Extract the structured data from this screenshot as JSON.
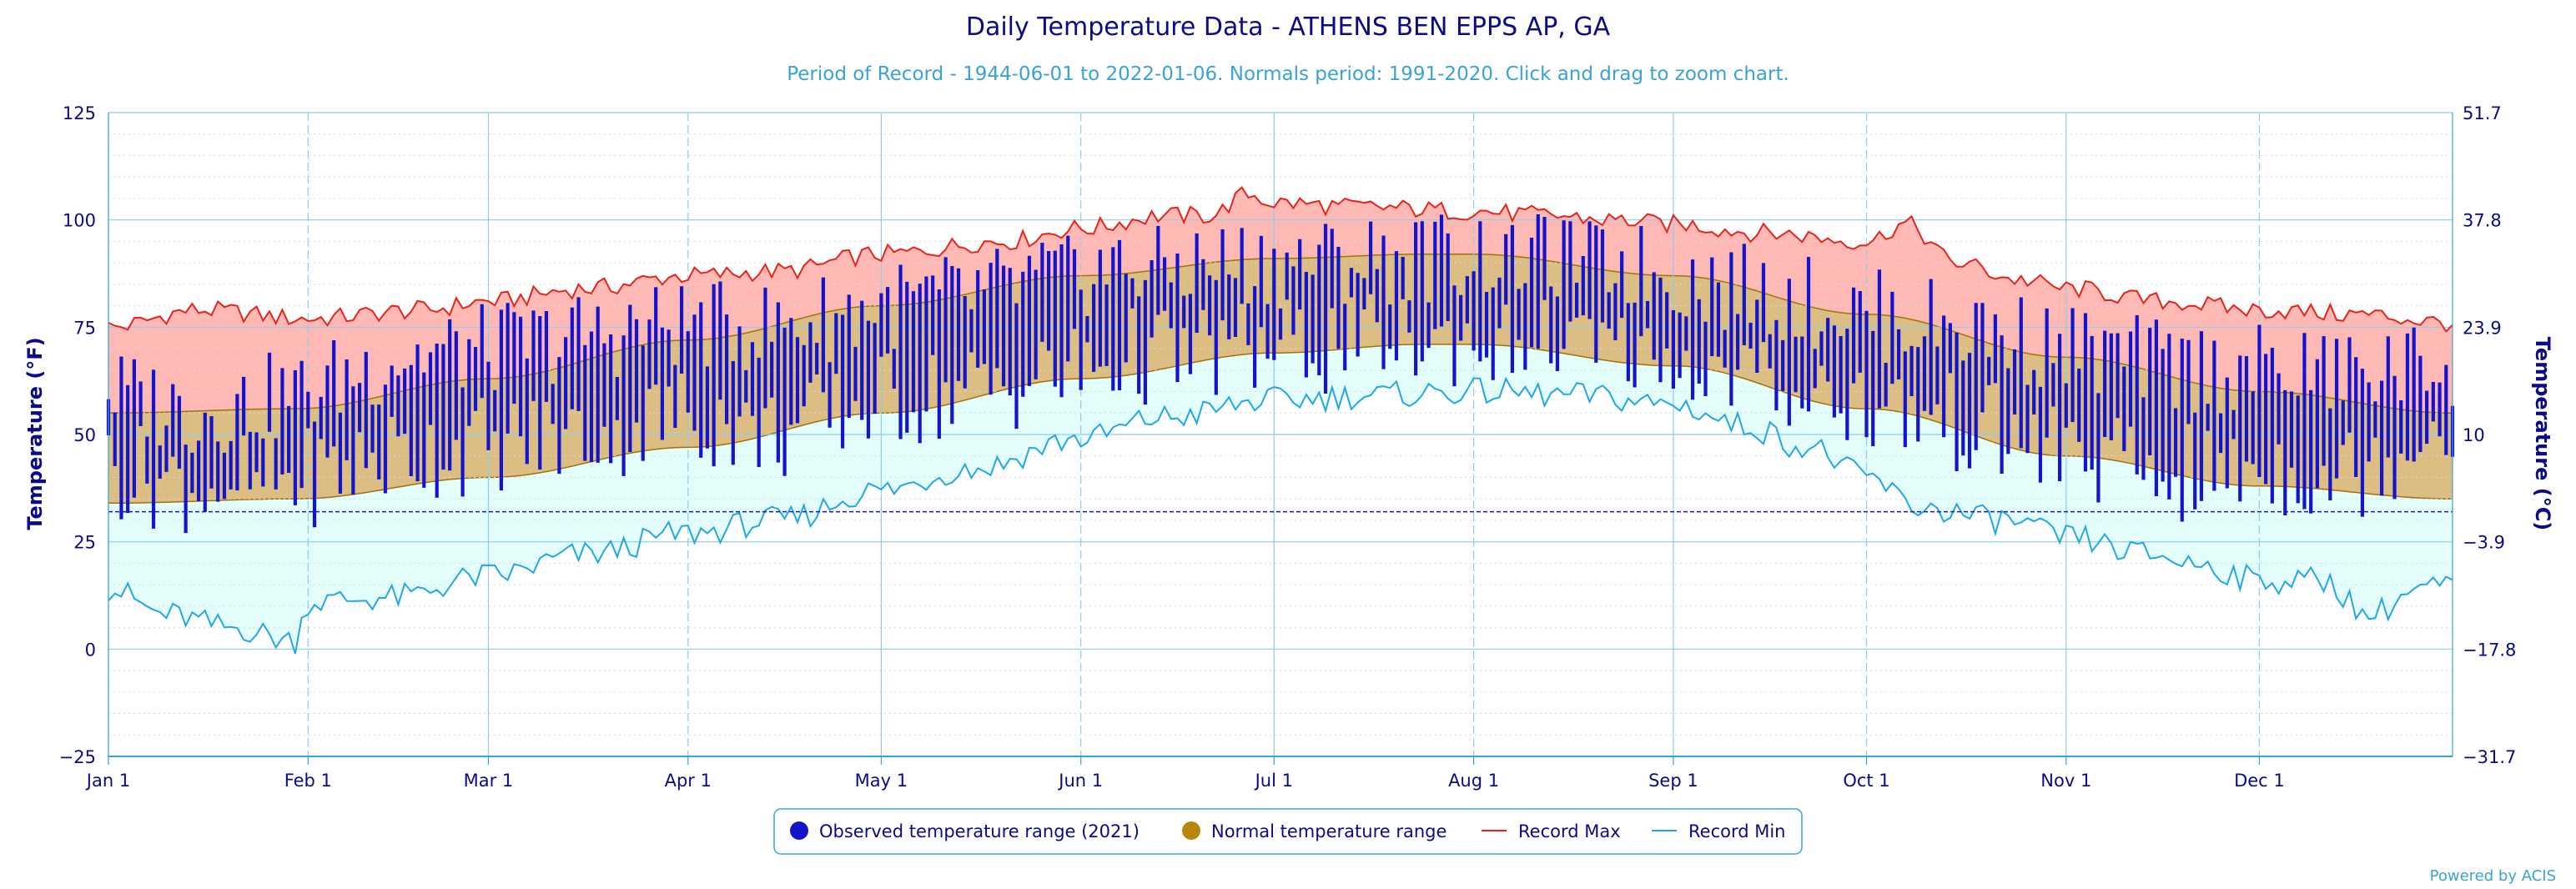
{
  "chart_data": {
    "type": "area",
    "title": "Daily Temperature Data - ATHENS BEN EPPS AP, GA",
    "subtitle": "Period of Record - 1944-06-01 to 2022-01-06. Normals period: 1991-2020. Click and drag to zoom chart.",
    "ylabel": "Temperature (°F)",
    "ylabel_right": "Temperature (°C)",
    "ylim": [
      -25,
      125
    ],
    "yticks": [
      "125",
      "100",
      "75",
      "50",
      "25",
      "0",
      "−25"
    ],
    "yticks_right": [
      "51.7",
      "37.8",
      "23.9",
      "10",
      "−3.9",
      "−17.8",
      "−31.7"
    ],
    "xlim": [
      1,
      365
    ],
    "xticks": [
      "Jan 1",
      "Feb 1",
      "Mar 1",
      "Apr 1",
      "May 1",
      "Jun 1",
      "Jul 1",
      "Aug 1",
      "Sep 1",
      "Oct 1",
      "Nov 1",
      "Dec 1"
    ],
    "xtick_days": [
      1,
      32,
      60,
      91,
      121,
      152,
      182,
      213,
      244,
      274,
      305,
      335
    ],
    "freezing_line": 32,
    "grid": true,
    "legend_position": "bottom-center",
    "normal_max_anchors": [
      [
        1,
        55
      ],
      [
        30,
        56
      ],
      [
        60,
        63
      ],
      [
        91,
        72
      ],
      [
        121,
        80
      ],
      [
        152,
        87
      ],
      [
        182,
        91
      ],
      [
        205,
        92
      ],
      [
        213,
        92
      ],
      [
        244,
        87
      ],
      [
        274,
        78
      ],
      [
        305,
        68
      ],
      [
        335,
        60
      ],
      [
        365,
        55
      ]
    ],
    "normal_min_anchors": [
      [
        1,
        34
      ],
      [
        30,
        35
      ],
      [
        60,
        40
      ],
      [
        91,
        47
      ],
      [
        121,
        55
      ],
      [
        152,
        63
      ],
      [
        182,
        69
      ],
      [
        205,
        71
      ],
      [
        213,
        71
      ],
      [
        244,
        66
      ],
      [
        274,
        56
      ],
      [
        305,
        45
      ],
      [
        335,
        38
      ],
      [
        365,
        35
      ]
    ],
    "record_max_anchors": [
      [
        1,
        75
      ],
      [
        15,
        79
      ],
      [
        32,
        77
      ],
      [
        50,
        79
      ],
      [
        60,
        81
      ],
      [
        75,
        84
      ],
      [
        91,
        87
      ],
      [
        105,
        88
      ],
      [
        121,
        92
      ],
      [
        140,
        95
      ],
      [
        152,
        98
      ],
      [
        165,
        101
      ],
      [
        172,
        101
      ],
      [
        178,
        106
      ],
      [
        182,
        104
      ],
      [
        195,
        103
      ],
      [
        213,
        102
      ],
      [
        225,
        101
      ],
      [
        234,
        100
      ],
      [
        244,
        99
      ],
      [
        258,
        97
      ],
      [
        274,
        95
      ],
      [
        280,
        99
      ],
      [
        288,
        90
      ],
      [
        298,
        86
      ],
      [
        305,
        84
      ],
      [
        320,
        81
      ],
      [
        335,
        79
      ],
      [
        350,
        78
      ],
      [
        365,
        76
      ]
    ],
    "record_min_anchors": [
      [
        1,
        14
      ],
      [
        10,
        8
      ],
      [
        20,
        5
      ],
      [
        30,
        2
      ],
      [
        32,
        11
      ],
      [
        45,
        12
      ],
      [
        60,
        17
      ],
      [
        75,
        22
      ],
      [
        91,
        27
      ],
      [
        105,
        30
      ],
      [
        121,
        37
      ],
      [
        135,
        42
      ],
      [
        152,
        49
      ],
      [
        165,
        54
      ],
      [
        182,
        58
      ],
      [
        195,
        59
      ],
      [
        213,
        60
      ],
      [
        230,
        59
      ],
      [
        244,
        57
      ],
      [
        255,
        52
      ],
      [
        265,
        47
      ],
      [
        274,
        40
      ],
      [
        282,
        33
      ],
      [
        295,
        30
      ],
      [
        305,
        26
      ],
      [
        318,
        22
      ],
      [
        325,
        20
      ],
      [
        335,
        16
      ],
      [
        345,
        16
      ],
      [
        352,
        8
      ],
      [
        360,
        14
      ],
      [
        365,
        15
      ]
    ],
    "observed_2021_anchors": [
      [
        1,
        60,
        42
      ],
      [
        15,
        55,
        38
      ],
      [
        32,
        60,
        40
      ],
      [
        45,
        68,
        45
      ],
      [
        60,
        70,
        48
      ],
      [
        75,
        73,
        50
      ],
      [
        91,
        76,
        55
      ],
      [
        105,
        75,
        50
      ],
      [
        121,
        80,
        58
      ],
      [
        135,
        82,
        60
      ],
      [
        152,
        88,
        65
      ],
      [
        160,
        89,
        68
      ],
      [
        182,
        90,
        70
      ],
      [
        200,
        91,
        71
      ],
      [
        213,
        92,
        72
      ],
      [
        230,
        92,
        70
      ],
      [
        244,
        87,
        66
      ],
      [
        258,
        83,
        64
      ],
      [
        274,
        78,
        57
      ],
      [
        290,
        75,
        52
      ],
      [
        305,
        70,
        46
      ],
      [
        320,
        66,
        40
      ],
      [
        335,
        65,
        42
      ],
      [
        350,
        64,
        41
      ],
      [
        365,
        67,
        55
      ]
    ],
    "series": [
      {
        "name": "Observed temperature range (2021)",
        "color": "#1414cc"
      },
      {
        "name": "Normal temperature range",
        "color": "#b8860b"
      },
      {
        "name": "Record Max",
        "color": "#e8231c"
      },
      {
        "name": "Record Min",
        "color": "#22a7e6"
      }
    ],
    "fill_colors": {
      "record_high_band": "#ffb9b4",
      "normal_band": "#dcbe84",
      "record_low_band": "#e3fdfb"
    }
  },
  "credits": "Powered by ACIS"
}
